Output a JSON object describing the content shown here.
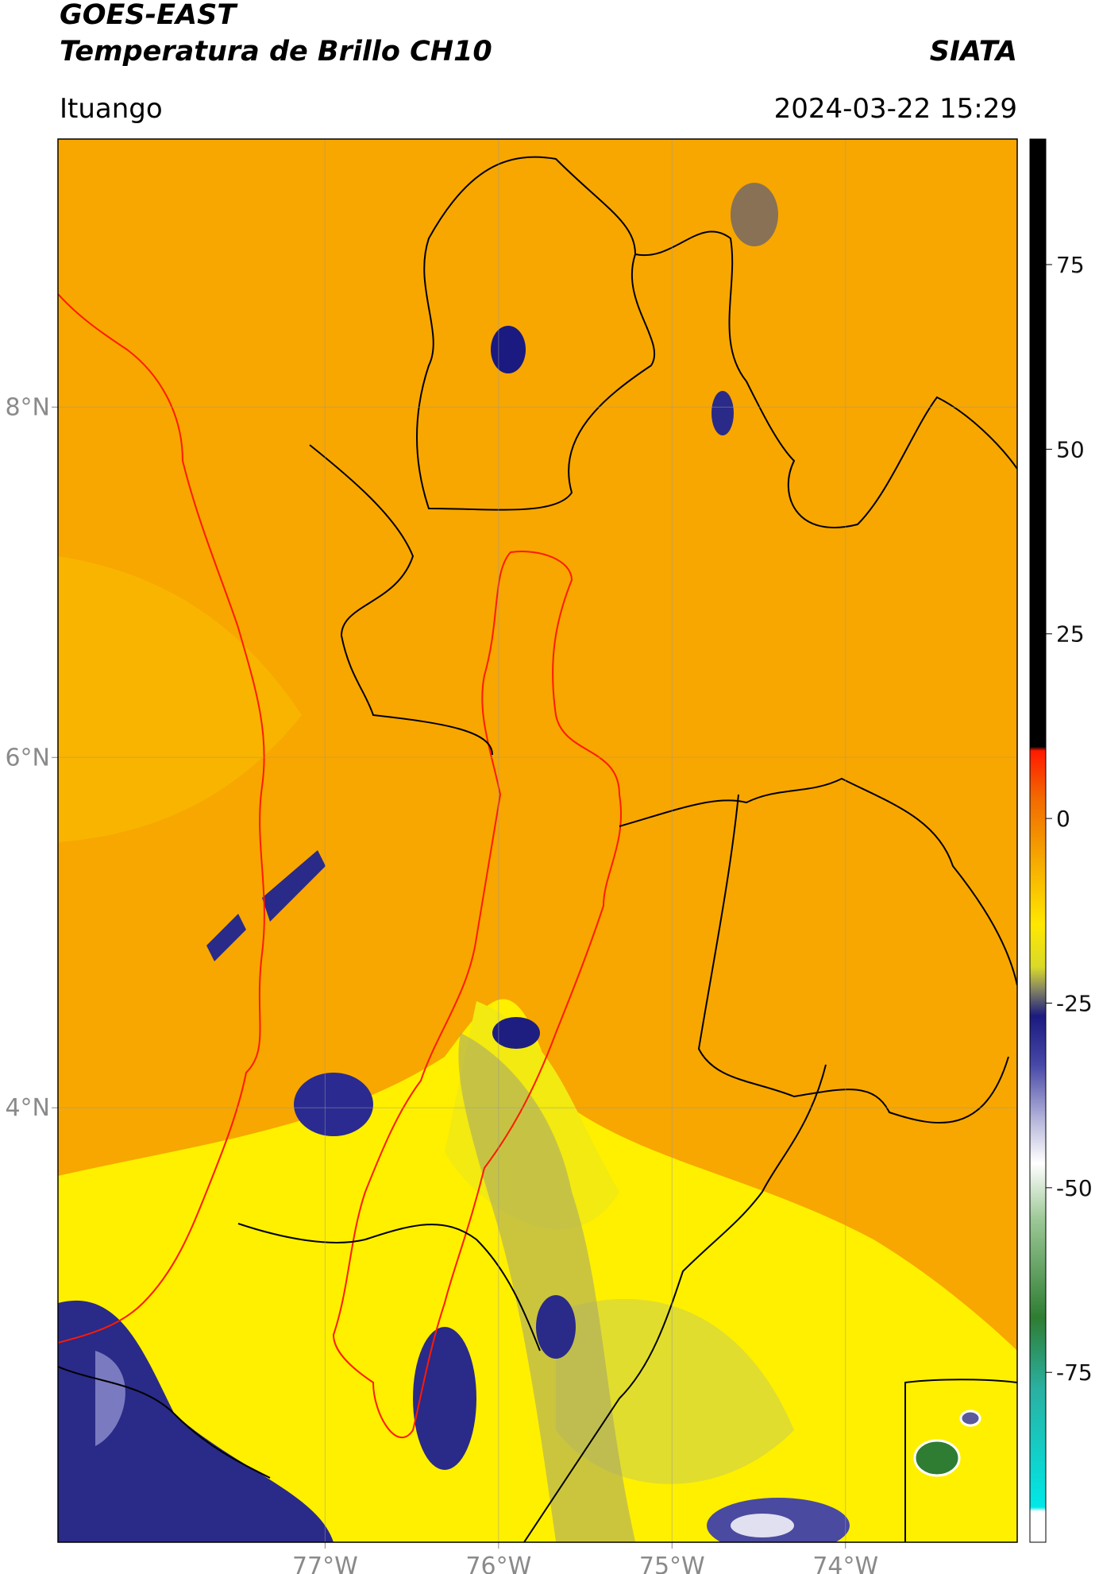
{
  "header": {
    "title": "GOES-EAST",
    "subtitle": "Temperatura de Brillo CH10",
    "source": "SIATA",
    "region": "Ituango",
    "datetime": "2024-03-22 15:29"
  },
  "map": {
    "xlim": [
      -78.54,
      -73.01
    ],
    "ylim": [
      1.52,
      9.53
    ],
    "xticks": [
      {
        "value": -77,
        "label": "77°W"
      },
      {
        "value": -76,
        "label": "76°W"
      },
      {
        "value": -75,
        "label": "75°W"
      },
      {
        "value": -74,
        "label": "74°W"
      }
    ],
    "yticks": [
      {
        "value": 8,
        "label": "8°N"
      },
      {
        "value": 6,
        "label": "6°N"
      },
      {
        "value": 4,
        "label": "4°N"
      }
    ],
    "grid": true
  },
  "colorbar": {
    "clim": [
      -98,
      92
    ],
    "ticks": [
      75,
      50,
      25,
      0,
      -25,
      -50,
      -75
    ]
  }
}
